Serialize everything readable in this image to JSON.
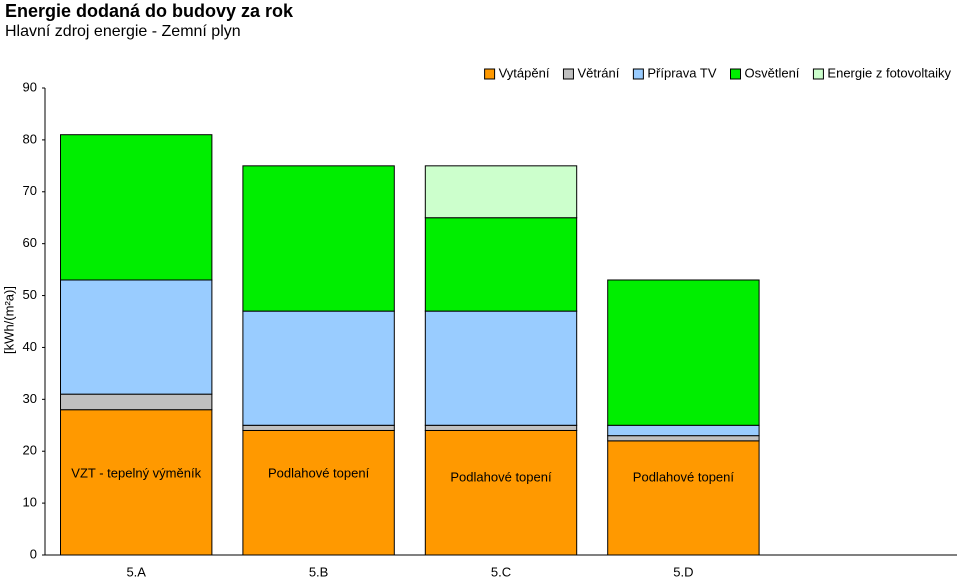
{
  "chart_data": {
    "type": "stacked_bar",
    "title": "Energie dodaná do budovy za rok",
    "subtitle": "Hlavní zdroj energie - Zemní plyn",
    "y_label": "[kWh/(m²a)]",
    "categories": [
      "5.A",
      "5.B",
      "5.C",
      "5.D",
      null
    ],
    "series": [
      {
        "name": "Vytápění",
        "color": "#ff9900",
        "values": [
          28,
          24,
          24,
          22,
          null
        ]
      },
      {
        "name": "Větrání",
        "color": "#c0c0c0",
        "values": [
          3,
          1,
          1,
          1,
          null
        ]
      },
      {
        "name": "Příprava TV",
        "color": "#99ccff",
        "values": [
          22,
          22,
          22,
          2,
          null
        ]
      },
      {
        "name": "Osvětlení",
        "color": "#00ee00",
        "values": [
          28,
          28,
          18,
          28,
          null
        ]
      },
      {
        "name": "Energie z fotovoltaiky",
        "color": "#ccffcc",
        "values": [
          0,
          0,
          10,
          0,
          null
        ]
      }
    ],
    "annotations": [
      "VZT - tepelný výměník",
      "Podlahové topení",
      "Podlahové topení",
      "Podlahové topení"
    ],
    "ylim": [
      0,
      90
    ],
    "yticks": [
      0,
      10,
      20,
      30,
      40,
      50,
      60,
      70,
      80,
      90
    ],
    "grid": false,
    "legend": "top-right"
  }
}
